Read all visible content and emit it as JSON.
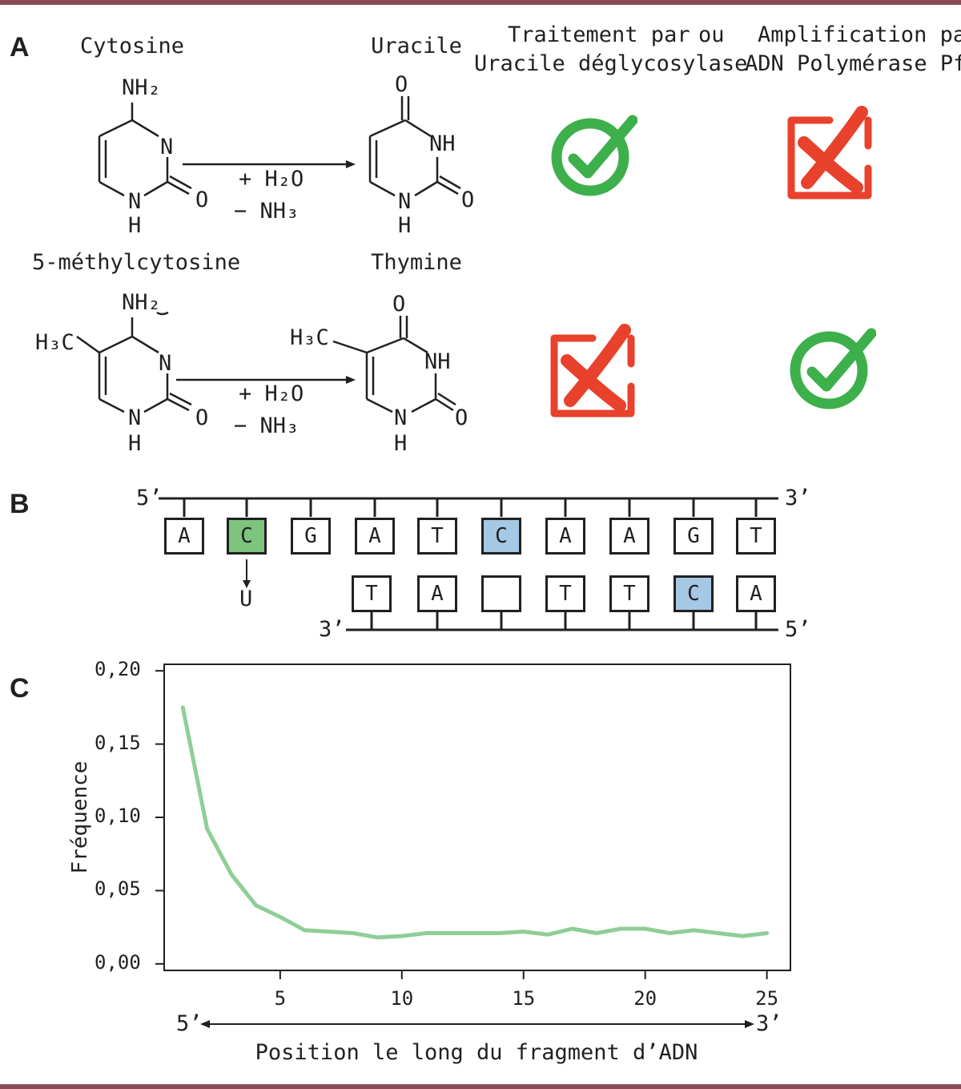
{
  "panels": {
    "a": "A",
    "b": "B",
    "c": "C"
  },
  "panel_a": {
    "cytosine": "Cytosine",
    "uracile": "Uracile",
    "methylcytosine": "5-méthylcytosine",
    "thymine": "Thymine",
    "treatment_line1": "Traitement par",
    "treatment_line2": "Uracile déglycosylase",
    "ou": "ou",
    "amplification_line1": "Amplification par",
    "amplification_line2": "ADN Polymérase Pfu",
    "reaction_add": "+ H₂O",
    "reaction_remove": "− NH₃",
    "atoms": {
      "nh2": "NH₂",
      "n": "N",
      "nh": "NH",
      "h": "H",
      "o": "O",
      "h3c": "H₃C"
    },
    "results": [
      {
        "row": "cytosine",
        "treatment": "check",
        "amplification": "cross"
      },
      {
        "row": "methylcytosine",
        "treatment": "cross",
        "amplification": "check"
      }
    ],
    "colors": {
      "check": "#3db04b",
      "cross": "#e8412c"
    }
  },
  "panel_b": {
    "top_strand_5": "5’",
    "top_strand_3": "3’",
    "bottom_strand_3": "3’",
    "bottom_strand_5": "5’",
    "top_bases": [
      "A",
      "C",
      "G",
      "A",
      "T",
      "C",
      "A",
      "A",
      "G",
      "T"
    ],
    "bottom_bases": [
      "T",
      "A",
      "",
      "T",
      "T",
      "C",
      "A"
    ],
    "deamination_product": "U",
    "colors": {
      "deaminated": "#7dc47d",
      "methylated": "#a5c8e4"
    }
  },
  "panel_c": {
    "arrow_left": "5’",
    "arrow_right": "3’"
  },
  "chart_data": {
    "type": "line",
    "xlabel": "Position le long du fragment d’ADN",
    "ylabel": "Fréquence",
    "xlim": [
      0.2,
      26
    ],
    "ylim": [
      -0.005,
      0.205
    ],
    "xticks": [
      "5",
      "10",
      "15",
      "20",
      "25"
    ],
    "yticks": [
      "0,00",
      "0,05",
      "0,10",
      "0,15",
      "0,20"
    ],
    "x": [
      1,
      2,
      3,
      4,
      5,
      6,
      7,
      8,
      9,
      10,
      11,
      12,
      13,
      14,
      15,
      16,
      17,
      18,
      19,
      20,
      21,
      22,
      23,
      24,
      25
    ],
    "series": [
      {
        "values": [
          0.175,
          0.092,
          0.061,
          0.04,
          0.032,
          0.023,
          0.022,
          0.021,
          0.018,
          0.019,
          0.021,
          0.021,
          0.021,
          0.021,
          0.022,
          0.02,
          0.024,
          0.021,
          0.024,
          0.024,
          0.021,
          0.023,
          0.021,
          0.019,
          0.021
        ]
      }
    ],
    "line_color": "#8fce96",
    "grid": false
  }
}
